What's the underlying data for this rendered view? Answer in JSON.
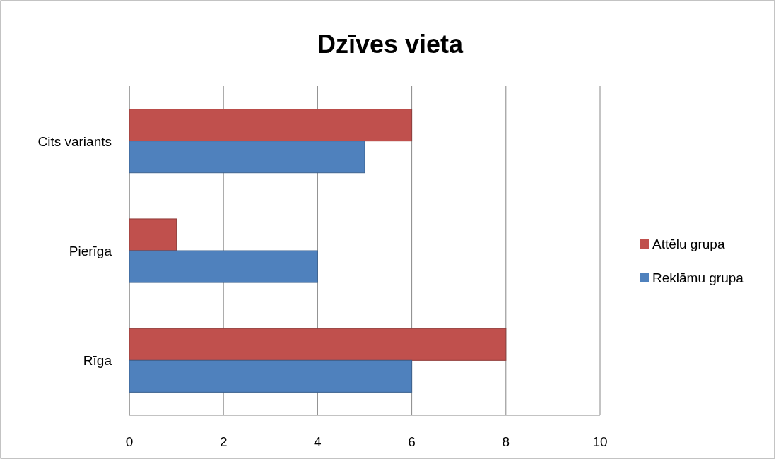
{
  "chart_data": {
    "type": "bar",
    "orientation": "horizontal",
    "title": "Dzīves vieta",
    "categories": [
      "Cits variants",
      "Pierīga",
      "Rīga"
    ],
    "series": [
      {
        "name": "Attēlu grupa",
        "color": "#c0504d",
        "values": [
          6,
          1,
          8
        ]
      },
      {
        "name": "Reklāmu grupa",
        "color": "#4f81bd",
        "values": [
          5,
          4,
          6
        ]
      }
    ],
    "xlim": [
      0,
      10
    ],
    "xticks": [
      0,
      2,
      4,
      6,
      8,
      10
    ],
    "grid": "x",
    "legend": "right"
  }
}
